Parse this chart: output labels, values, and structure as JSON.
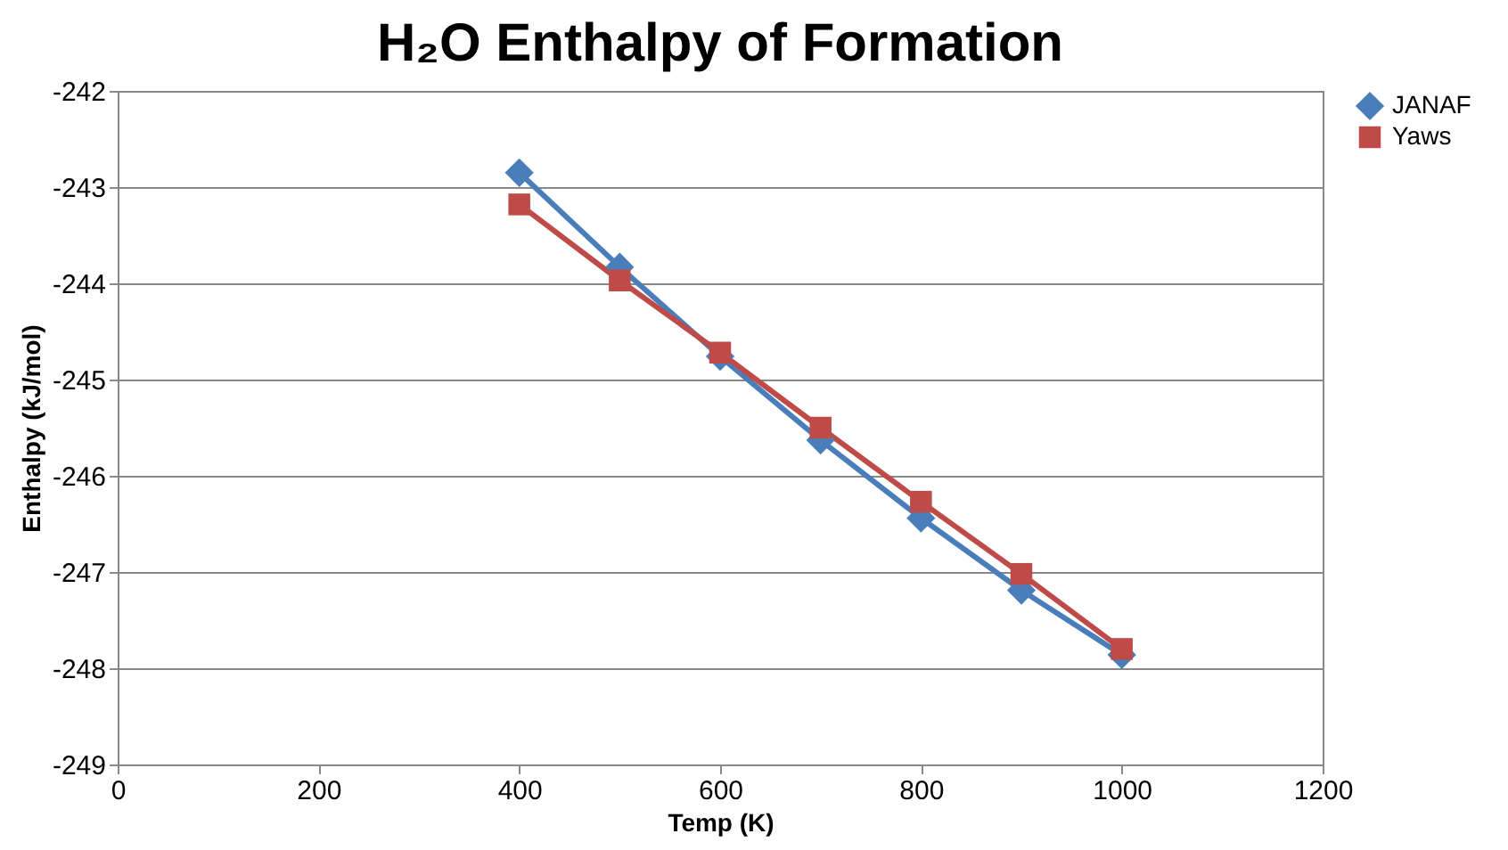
{
  "chart_data": {
    "type": "line",
    "title": "H₂O Enthalpy of Formation",
    "xlabel": "Temp (K)",
    "ylabel": "Enthalpy (kJ/mol)",
    "x": [
      400,
      500,
      600,
      700,
      800,
      900,
      1000
    ],
    "series": [
      {
        "name": "JANAF",
        "color": "#4a7ebb",
        "marker": "diamond",
        "values": [
          -242.85,
          -243.83,
          -244.76,
          -245.63,
          -246.44,
          -247.19,
          -247.86
        ]
      },
      {
        "name": "Yaws",
        "color": "#be4b48",
        "marker": "square",
        "values": [
          -243.18,
          -243.97,
          -244.72,
          -245.5,
          -246.27,
          -247.02,
          -247.8
        ]
      }
    ],
    "xlim": [
      0,
      1200
    ],
    "xticks": [
      0,
      200,
      400,
      600,
      800,
      1000,
      1200
    ],
    "ylim": [
      -249,
      -242
    ],
    "yticks": [
      -249,
      -248,
      -247,
      -246,
      -245,
      -244,
      -243,
      -242
    ],
    "grid": "y",
    "legend": "right",
    "line_style": "solid"
  }
}
